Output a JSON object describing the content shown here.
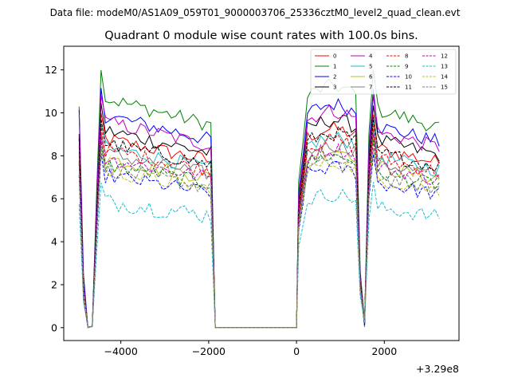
{
  "suptitle": "Data file: modeM0/AS1A09_059T01_9000003706_25336cztM0_level2_quad_clean.evt",
  "chart_data": {
    "type": "line",
    "title": "Quadrant 0 module wise count rates with 100.0s bins.",
    "xlabel": "",
    "ylabel": "",
    "x_offset_label": "+3.29e8",
    "xlim": [
      -5300,
      3700
    ],
    "ylim": [
      -0.6,
      13.1
    ],
    "xticks": [
      -4000,
      -2000,
      0,
      2000
    ],
    "xtick_labels": [
      "−4000",
      "−2000",
      "0",
      "2000"
    ],
    "yticks": [
      0,
      2,
      4,
      6,
      8,
      10,
      12
    ],
    "ytick_labels": [
      "0",
      "2",
      "4",
      "6",
      "8",
      "10",
      "12"
    ],
    "grid": false,
    "legend_position": "top-right",
    "segments": [
      {
        "start": -4950,
        "bins": 32,
        "step": 100
      },
      {
        "start": 50,
        "bins": 33,
        "step": 100
      }
    ],
    "series": [
      {
        "name": "0",
        "color": "#ff0000",
        "style": "solid",
        "base": 8.8
      },
      {
        "name": "1",
        "color": "#008000",
        "style": "solid",
        "base": 10.7
      },
      {
        "name": "2",
        "color": "#0000ff",
        "style": "solid",
        "base": 9.9
      },
      {
        "name": "3",
        "color": "#000000",
        "style": "solid",
        "base": 9.2
      },
      {
        "name": "4",
        "color": "#bf00bf",
        "style": "solid",
        "base": 9.6
      },
      {
        "name": "5",
        "color": "#17becf",
        "style": "solid",
        "base": 8.4
      },
      {
        "name": "6",
        "color": "#bcbd22",
        "style": "solid",
        "base": 7.9
      },
      {
        "name": "7",
        "color": "#7f7f7f",
        "style": "solid",
        "base": 8.1
      },
      {
        "name": "8",
        "color": "#ff0000",
        "style": "dashed",
        "base": 8.3
      },
      {
        "name": "9",
        "color": "#008000",
        "style": "dashed",
        "base": 7.6
      },
      {
        "name": "10",
        "color": "#0000ff",
        "style": "dashed",
        "base": 7.1
      },
      {
        "name": "11",
        "color": "#000000",
        "style": "dashed",
        "base": 8.6
      },
      {
        "name": "12",
        "color": "#bf00bf",
        "style": "dashed",
        "base": 7.9
      },
      {
        "name": "13",
        "color": "#17becf",
        "style": "dashed",
        "base": 5.9
      },
      {
        "name": "14",
        "color": "#bcbd22",
        "style": "dashed",
        "base": 7.3
      },
      {
        "name": "15",
        "color": "#7f7f7f",
        "style": "dashed",
        "base": 7.4
      }
    ]
  }
}
